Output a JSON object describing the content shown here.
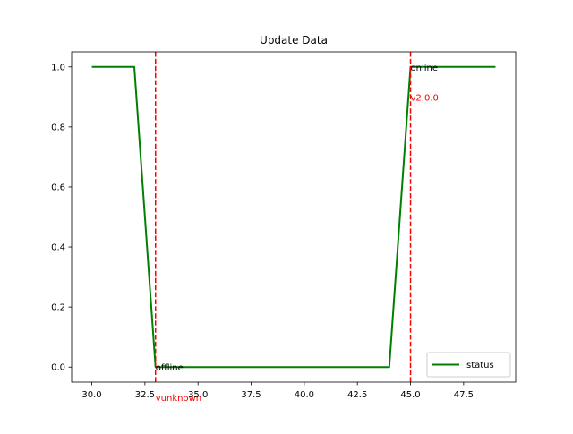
{
  "chart_data": {
    "type": "line",
    "title": "Update Data",
    "xlabel": "",
    "ylabel": "",
    "xlim": [
      29.05,
      49.95
    ],
    "ylim": [
      -0.05,
      1.05
    ],
    "xticks": [
      30.0,
      32.5,
      35.0,
      37.5,
      40.0,
      42.5,
      45.0,
      47.5
    ],
    "xtick_labels": [
      "30.0",
      "32.5",
      "35.0",
      "37.5",
      "40.0",
      "42.5",
      "45.0",
      "47.5"
    ],
    "yticks": [
      0.0,
      0.2,
      0.4,
      0.6,
      0.8,
      1.0
    ],
    "ytick_labels": [
      "0.0",
      "0.2",
      "0.4",
      "0.6",
      "0.8",
      "1.0"
    ],
    "grid": false,
    "legend": "bottom-right",
    "series": [
      {
        "name": "status",
        "color": "#008000",
        "x": [
          30,
          31,
          32,
          33,
          34,
          35,
          36,
          37,
          38,
          39,
          40,
          41,
          42,
          43,
          44,
          45,
          46,
          47,
          48,
          49
        ],
        "y": [
          1,
          1,
          1,
          0,
          0,
          0,
          0,
          0,
          0,
          0,
          0,
          0,
          0,
          0,
          0,
          1,
          1,
          1,
          1,
          1
        ]
      }
    ],
    "vlines": [
      {
        "x": 33,
        "color": "#ff0000",
        "style": "dashed"
      },
      {
        "x": 45,
        "color": "#ff0000",
        "style": "dashed"
      }
    ],
    "annotations": [
      {
        "text": "offline",
        "x": 33,
        "y": 0.0,
        "color": "#000000"
      },
      {
        "text": "vunknown",
        "x": 33,
        "y": -0.1,
        "color": "#ff0000"
      },
      {
        "text": "online",
        "x": 45,
        "y": 1.0,
        "color": "#000000"
      },
      {
        "text": "v2.0.0",
        "x": 45,
        "y": 0.9,
        "color": "#ff0000"
      }
    ]
  }
}
